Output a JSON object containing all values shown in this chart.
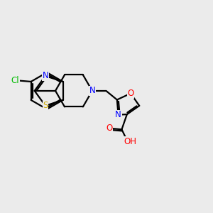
{
  "background_color": "#ebebeb",
  "atom_colors": {
    "C": "#000000",
    "N": "#0000ff",
    "O": "#ff0000",
    "S": "#ccaa00",
    "Cl": "#00bb00",
    "H": "#999999"
  },
  "bond_color": "#000000",
  "bond_width": 1.6,
  "font_size": 8.5,
  "fig_size": [
    3.0,
    3.0
  ],
  "dpi": 100
}
